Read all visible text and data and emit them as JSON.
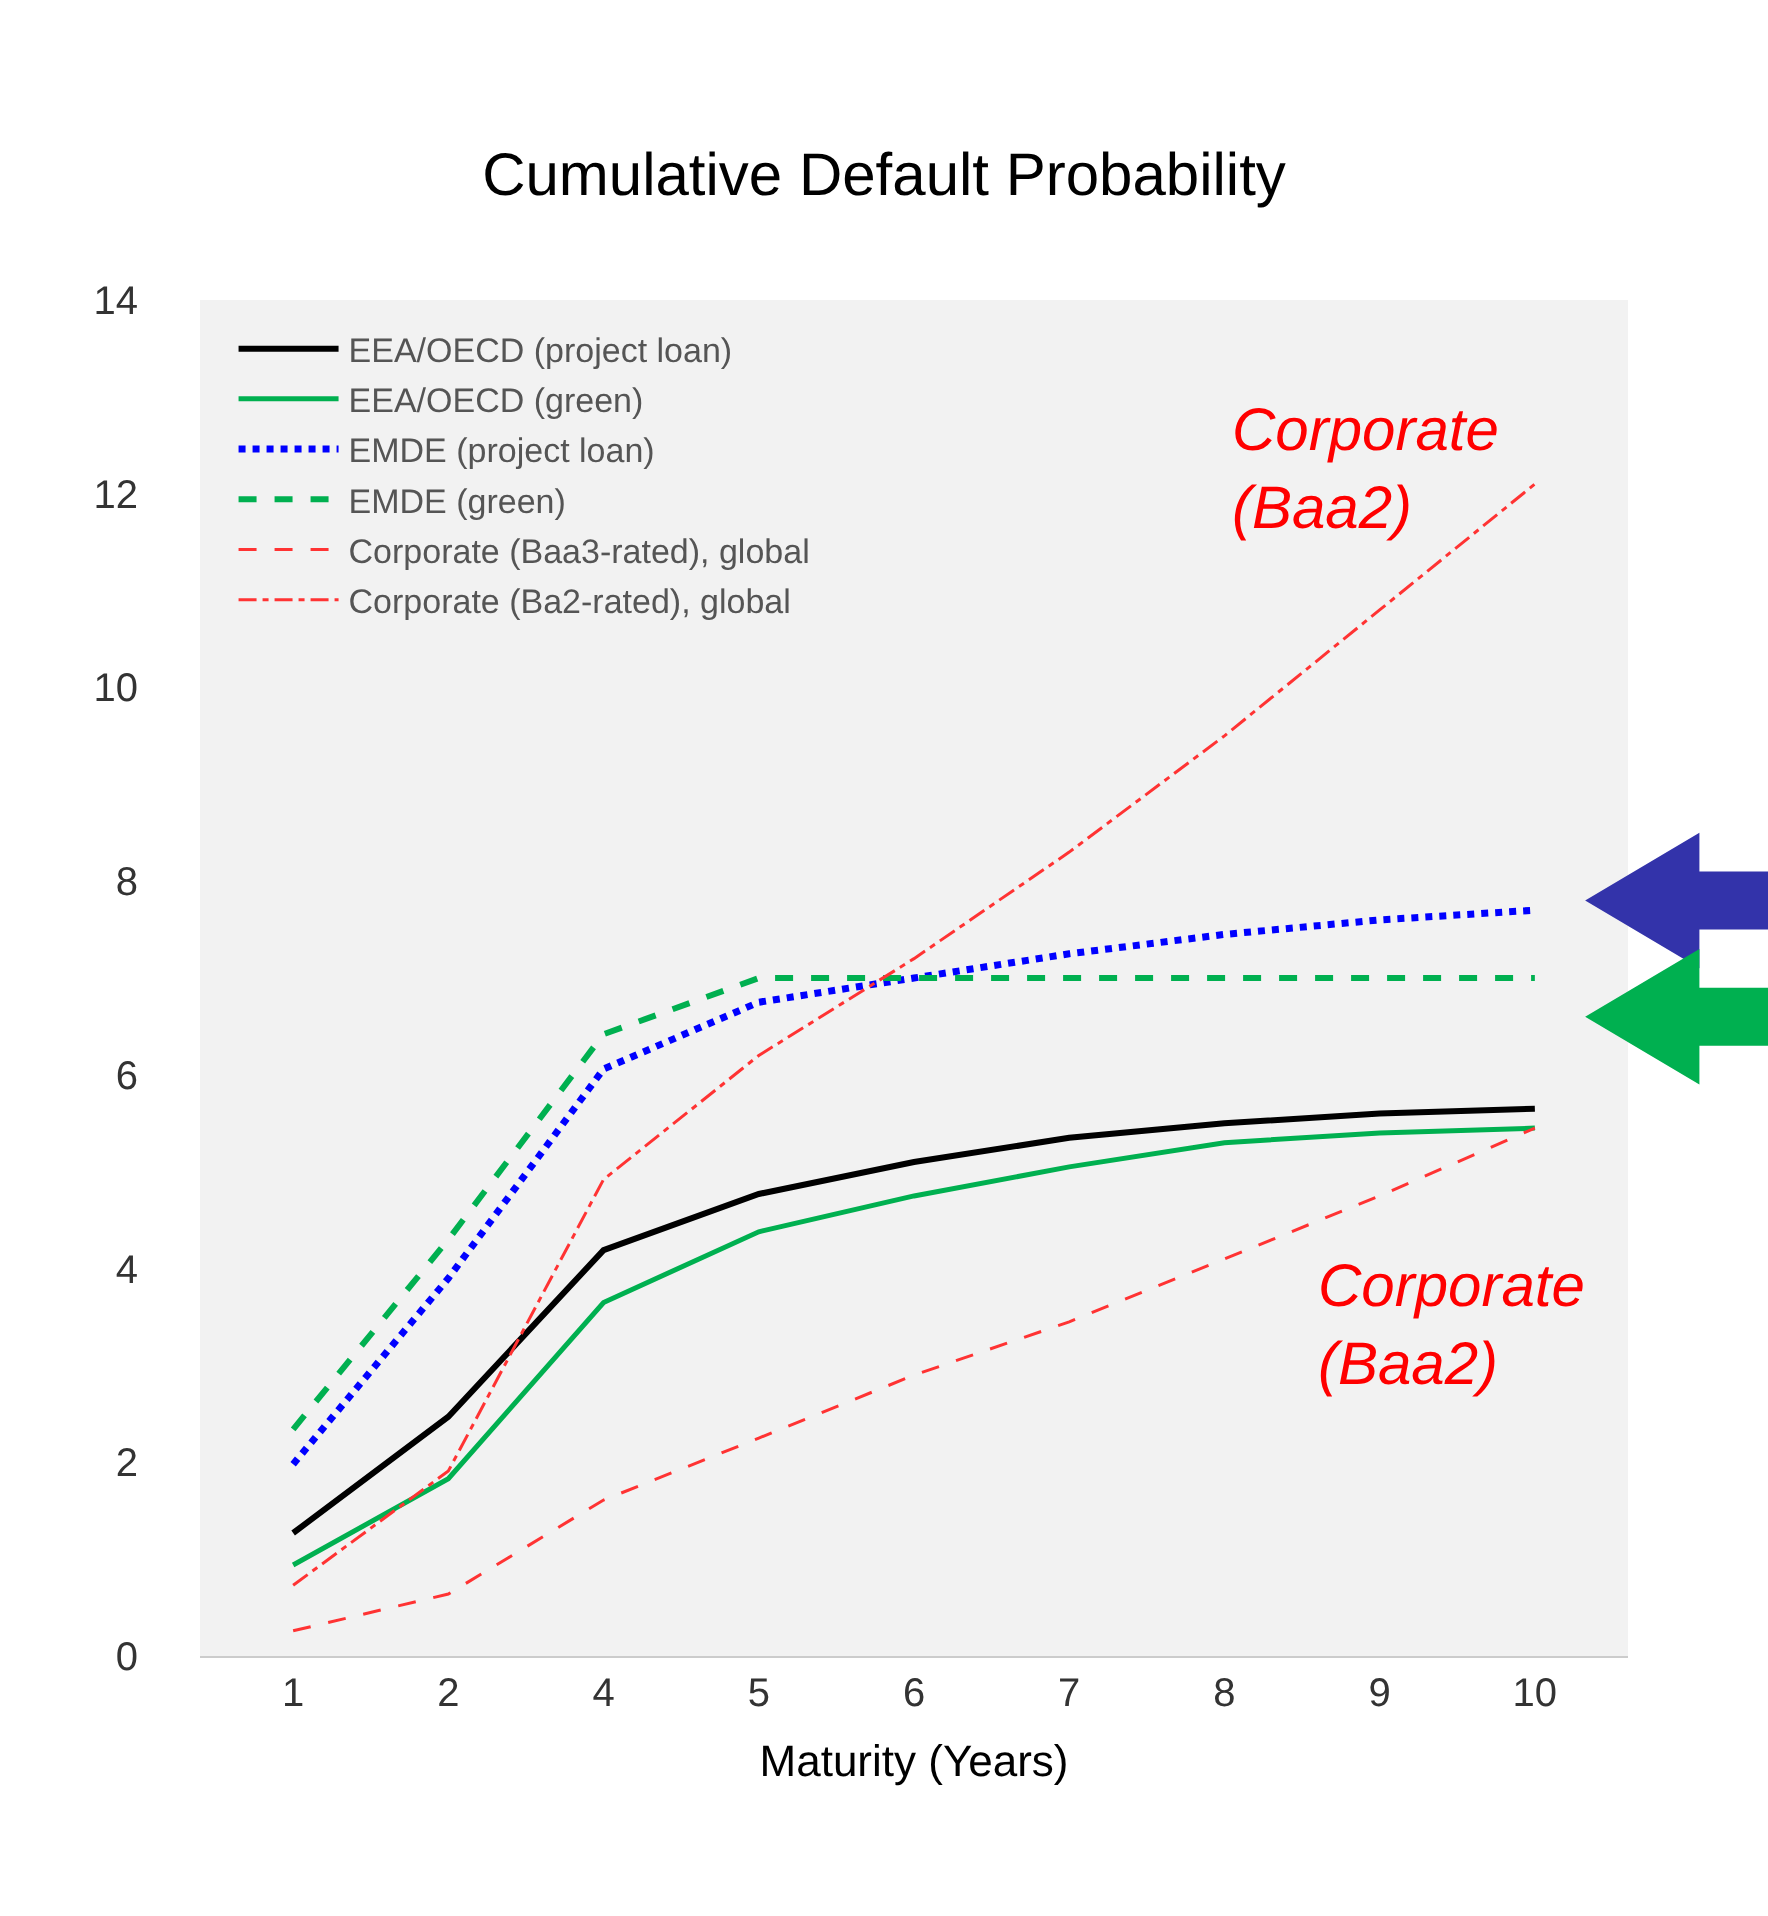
{
  "chart_data": {
    "type": "line",
    "title": "Cumulative Default Probability",
    "xlabel": "Maturity (Years)",
    "categories": [
      "1",
      "2",
      "4",
      "5",
      "6",
      "7",
      "8",
      "9",
      "10"
    ],
    "ylim": [
      0,
      14
    ],
    "yticks": [
      0,
      2,
      4,
      6,
      8,
      10,
      12,
      14
    ],
    "grid": false,
    "legend": "top left",
    "marker": "none",
    "series": [
      {
        "name": "EEA/OECD (project loan)",
        "color": "#000000",
        "line_style": "solid",
        "values": [
          1.27,
          2.47,
          4.19,
          4.77,
          5.1,
          5.35,
          5.5,
          5.6,
          5.65
        ]
      },
      {
        "name": "EEA/OECD (green)",
        "color": "#00b050",
        "line_style": "solid",
        "values": [
          0.94,
          1.83,
          3.65,
          4.38,
          4.75,
          5.05,
          5.3,
          5.4,
          5.45
        ]
      },
      {
        "name": "EMDE (project loan)",
        "color": "#0000ff",
        "line_style": "dotted",
        "values": [
          1.98,
          3.9,
          6.06,
          6.75,
          7.0,
          7.25,
          7.45,
          7.6,
          7.7
        ]
      },
      {
        "name": "EMDE (green)",
        "color": "#00b050",
        "line_style": "dashed",
        "values": [
          2.34,
          4.3,
          6.42,
          7.0,
          7.0,
          7.0,
          7.0,
          7.0,
          7.0
        ]
      },
      {
        "name": "Corporate (Baa3-rated), global",
        "color": "#ff3333",
        "line_style": "dashed",
        "values": [
          0.26,
          0.64,
          1.61,
          2.25,
          2.9,
          3.45,
          4.1,
          4.75,
          5.45
        ]
      },
      {
        "name": "Corporate (Ba2-rated), global",
        "color": "#ff3333",
        "line_style": "dashdot",
        "values": [
          0.73,
          1.91,
          4.92,
          6.2,
          7.2,
          8.3,
          9.5,
          10.8,
          12.1
        ]
      }
    ],
    "annotations": [
      "Corporate\n(Baa2)",
      "Corporate\n(Baa2)"
    ]
  }
}
